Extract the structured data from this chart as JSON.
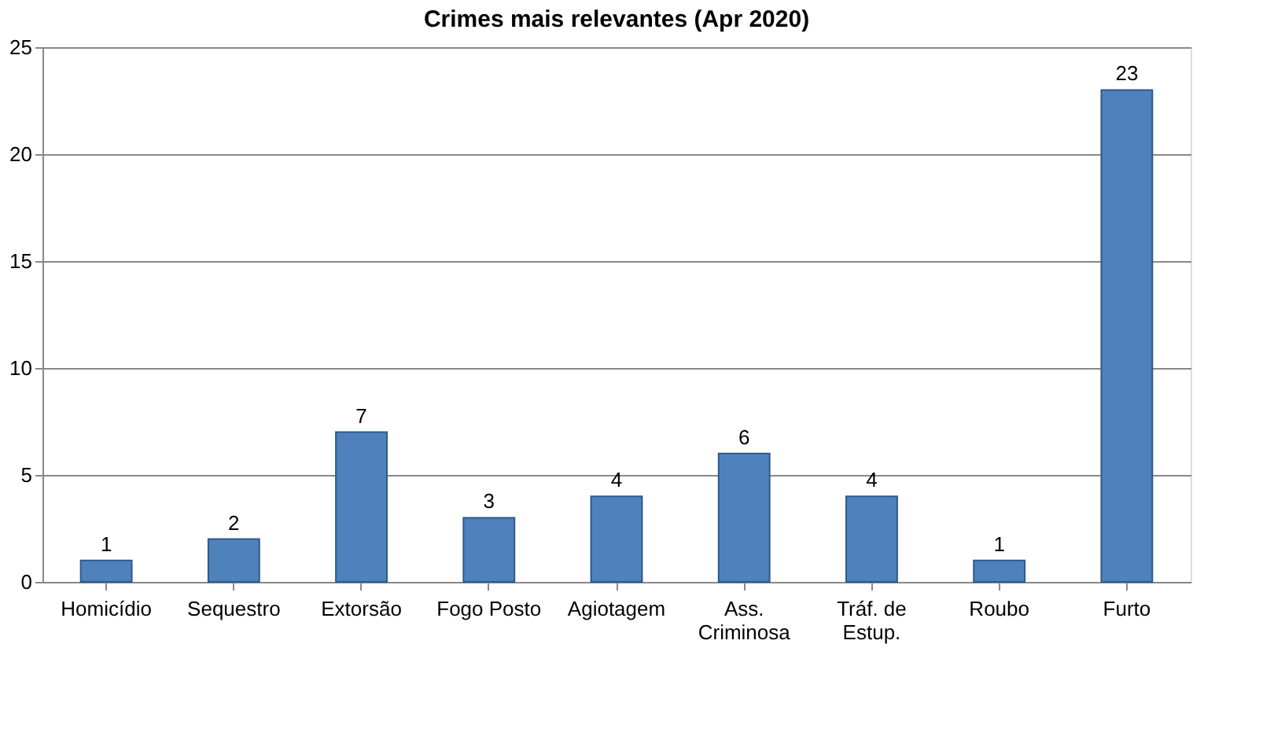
{
  "chart_data": {
    "type": "bar",
    "title": "Crimes mais relevantes (Apr 2020)",
    "categories": [
      "Homicídio",
      "Sequestro",
      "Extorsão",
      "Fogo Posto",
      "Agiotagem",
      "Ass.\nCriminosa",
      "Tráf. de\nEstup.",
      "Roubo",
      "Furto"
    ],
    "values": [
      1,
      2,
      7,
      3,
      4,
      6,
      4,
      1,
      23
    ],
    "color": "#4f81bd",
    "ylim": [
      0,
      25
    ],
    "yticks": [
      0,
      5,
      10,
      15,
      20,
      25
    ],
    "grid": "y",
    "data_labels": true
  }
}
